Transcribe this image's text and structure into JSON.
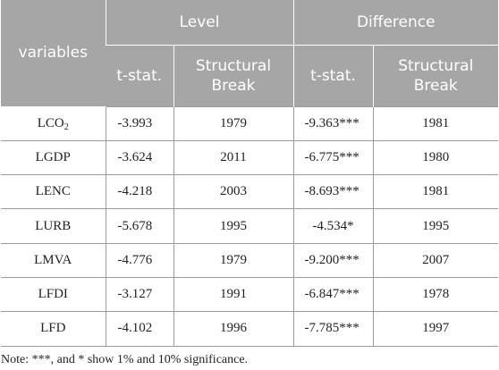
{
  "table": {
    "header": {
      "variables_label": "variables",
      "group_level": "Level",
      "group_difference": "Difference",
      "tstat_label": "t-stat.",
      "structural_label_line1": "Structural",
      "structural_label_line2": "Break"
    },
    "rows": [
      {
        "variable_base": "LCO",
        "variable_sub": "2",
        "level_tstat": "-3.993",
        "level_break": "1979",
        "diff_tstat": "-9.363***",
        "diff_break": "1981"
      },
      {
        "variable_base": "LGDP",
        "variable_sub": "",
        "level_tstat": "-3.624",
        "level_break": "2011",
        "diff_tstat": "-6.775***",
        "diff_break": "1980"
      },
      {
        "variable_base": "LENC",
        "variable_sub": "",
        "level_tstat": "-4.218",
        "level_break": "2003",
        "diff_tstat": "-8.693***",
        "diff_break": "1981"
      },
      {
        "variable_base": "LURB",
        "variable_sub": "",
        "level_tstat": "-5.678",
        "level_break": "1995",
        "diff_tstat": "-4.534*",
        "diff_break": "1995"
      },
      {
        "variable_base": "LMVA",
        "variable_sub": "",
        "level_tstat": "-4.776",
        "level_break": "1979",
        "diff_tstat": "-9.200***",
        "diff_break": "2007"
      },
      {
        "variable_base": "LFDI",
        "variable_sub": "",
        "level_tstat": "-3.127",
        "level_break": "1991",
        "diff_tstat": "-6.847***",
        "diff_break": "1978"
      },
      {
        "variable_base": "LFD",
        "variable_sub": "",
        "level_tstat": "-4.102",
        "level_break": "1996",
        "diff_tstat": "-7.785***",
        "diff_break": "1997"
      }
    ]
  },
  "note": "Note: ***, and * show 1% and 10% significance."
}
